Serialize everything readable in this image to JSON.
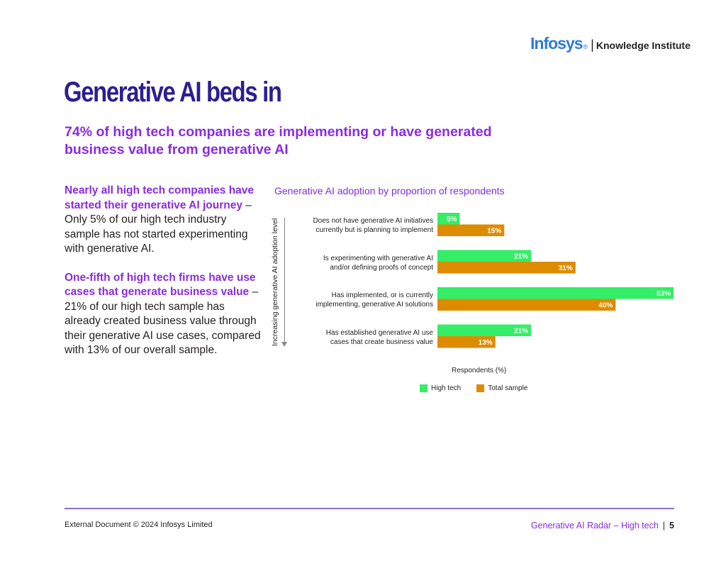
{
  "header": {
    "logo_brand": "Infosys",
    "logo_reg": "®",
    "logo_separator": "|",
    "logo_unit": "Knowledge Institute"
  },
  "page": {
    "title": "Generative AI beds in",
    "subtitle": "74% of high tech companies are implementing or have generated business value from generative AI"
  },
  "body": {
    "p1_highlight": "Nearly all high tech companies have started their generative AI journey",
    "p1_text": " – Only 5% of our high tech industry sample has not started experimenting with generative AI.",
    "p2_highlight": "One-fifth of high tech firms have use cases that generate business value",
    "p2_text": " – 21% of our high tech sample has already created business value through their generative AI use cases, compared with 13% of our overall sample."
  },
  "chart_data": {
    "type": "bar",
    "orientation": "horizontal",
    "title": "Generative AI adoption by proportion of respondents",
    "xlabel": "Respondents (%)",
    "ylabel": "Increasing generative AI adoption level",
    "categories": [
      [
        "Does not have generative AI initiatives",
        "currently but is planning to implement"
      ],
      [
        "Is experimenting with generative AI",
        "and/or defining proofs of concept"
      ],
      [
        "Has implemented, or is currently",
        "implementing, generative AI solutions"
      ],
      [
        "Has established generative AI use",
        "cases that create business value"
      ]
    ],
    "series": [
      {
        "name": "High tech",
        "color": "#33ee66",
        "values": [
          5,
          21,
          53,
          21
        ]
      },
      {
        "name": "Total sample",
        "color": "#dd8c00",
        "values": [
          15,
          31,
          40,
          13
        ]
      }
    ],
    "value_suffix": "%",
    "xlim": [
      0,
      53
    ],
    "grid": false,
    "legend": "bottom"
  },
  "footer": {
    "left": "External Document © 2024 Infosys Limited",
    "right": "Generative AI Radar – High tech",
    "separator": "|",
    "page_number": "5"
  }
}
